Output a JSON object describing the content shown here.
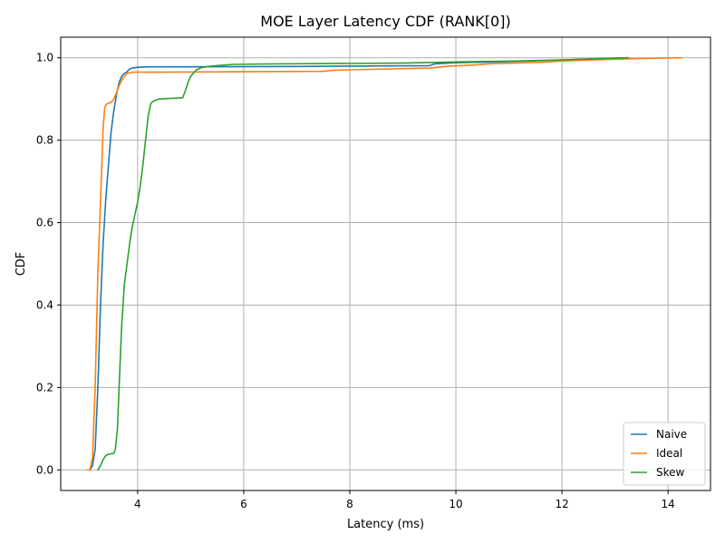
{
  "chart_data": {
    "type": "line",
    "title": "MOE Layer Latency CDF (RANK[0])",
    "xlabel": "Latency (ms)",
    "ylabel": "CDF",
    "xlim": [
      2.55,
      14.8
    ],
    "ylim": [
      -0.05,
      1.05
    ],
    "xticks": [
      4,
      6,
      8,
      10,
      12,
      14
    ],
    "yticks": [
      0.0,
      0.2,
      0.4,
      0.6,
      0.8,
      1.0
    ],
    "xtick_labels": [
      "4",
      "6",
      "8",
      "10",
      "12",
      "14"
    ],
    "ytick_labels": [
      "0.0",
      "0.2",
      "0.4",
      "0.6",
      "0.8",
      "1.0"
    ],
    "grid": true,
    "legend_position": "lower-right",
    "series": [
      {
        "name": "Naive",
        "color": "#1f77b4",
        "x": [
          3.1,
          3.15,
          3.2,
          3.25,
          3.3,
          3.35,
          3.4,
          3.45,
          3.5,
          3.55,
          3.6,
          3.65,
          3.7,
          3.75,
          3.8,
          3.85,
          3.9,
          4.0,
          4.2,
          5.0,
          7.0,
          9.5,
          9.6,
          10.0,
          10.8,
          11.8,
          12.5,
          13.25
        ],
        "y": [
          0.0,
          0.01,
          0.05,
          0.2,
          0.4,
          0.55,
          0.66,
          0.74,
          0.82,
          0.87,
          0.91,
          0.94,
          0.955,
          0.962,
          0.966,
          0.973,
          0.975,
          0.977,
          0.978,
          0.978,
          0.979,
          0.981,
          0.985,
          0.988,
          0.99,
          0.994,
          0.997,
          1.0
        ]
      },
      {
        "name": "Ideal",
        "color": "#ff7f0e",
        "x": [
          3.05,
          3.1,
          3.15,
          3.2,
          3.25,
          3.3,
          3.35,
          3.38,
          3.42,
          3.5,
          3.55,
          3.6,
          3.65,
          3.7,
          3.75,
          3.8,
          3.9,
          4.5,
          7.5,
          7.7,
          9.5,
          9.9,
          10.3,
          10.6,
          11.8,
          11.9,
          13.4,
          14.25
        ],
        "y": [
          0.0,
          0.0,
          0.03,
          0.2,
          0.48,
          0.65,
          0.83,
          0.88,
          0.888,
          0.892,
          0.9,
          0.915,
          0.932,
          0.945,
          0.955,
          0.962,
          0.965,
          0.965,
          0.967,
          0.97,
          0.975,
          0.98,
          0.982,
          0.985,
          0.99,
          0.992,
          0.998,
          1.0
        ]
      },
      {
        "name": "Skew",
        "color": "#2ca02c",
        "x": [
          3.25,
          3.3,
          3.35,
          3.4,
          3.45,
          3.55,
          3.58,
          3.62,
          3.65,
          3.7,
          3.75,
          3.8,
          3.85,
          3.9,
          3.95,
          4.0,
          4.05,
          4.1,
          4.15,
          4.2,
          4.25,
          4.3,
          4.4,
          4.85,
          4.9,
          4.95,
          5.0,
          5.1,
          5.2,
          5.4,
          5.8,
          6.5,
          9.0,
          10.0,
          11.0,
          12.0,
          13.25
        ],
        "y": [
          0.0,
          0.01,
          0.025,
          0.035,
          0.038,
          0.04,
          0.05,
          0.1,
          0.2,
          0.35,
          0.45,
          0.5,
          0.55,
          0.59,
          0.62,
          0.65,
          0.69,
          0.74,
          0.8,
          0.86,
          0.89,
          0.895,
          0.9,
          0.903,
          0.92,
          0.94,
          0.955,
          0.97,
          0.976,
          0.98,
          0.984,
          0.985,
          0.987,
          0.99,
          0.992,
          0.995,
          1.0
        ]
      }
    ]
  }
}
